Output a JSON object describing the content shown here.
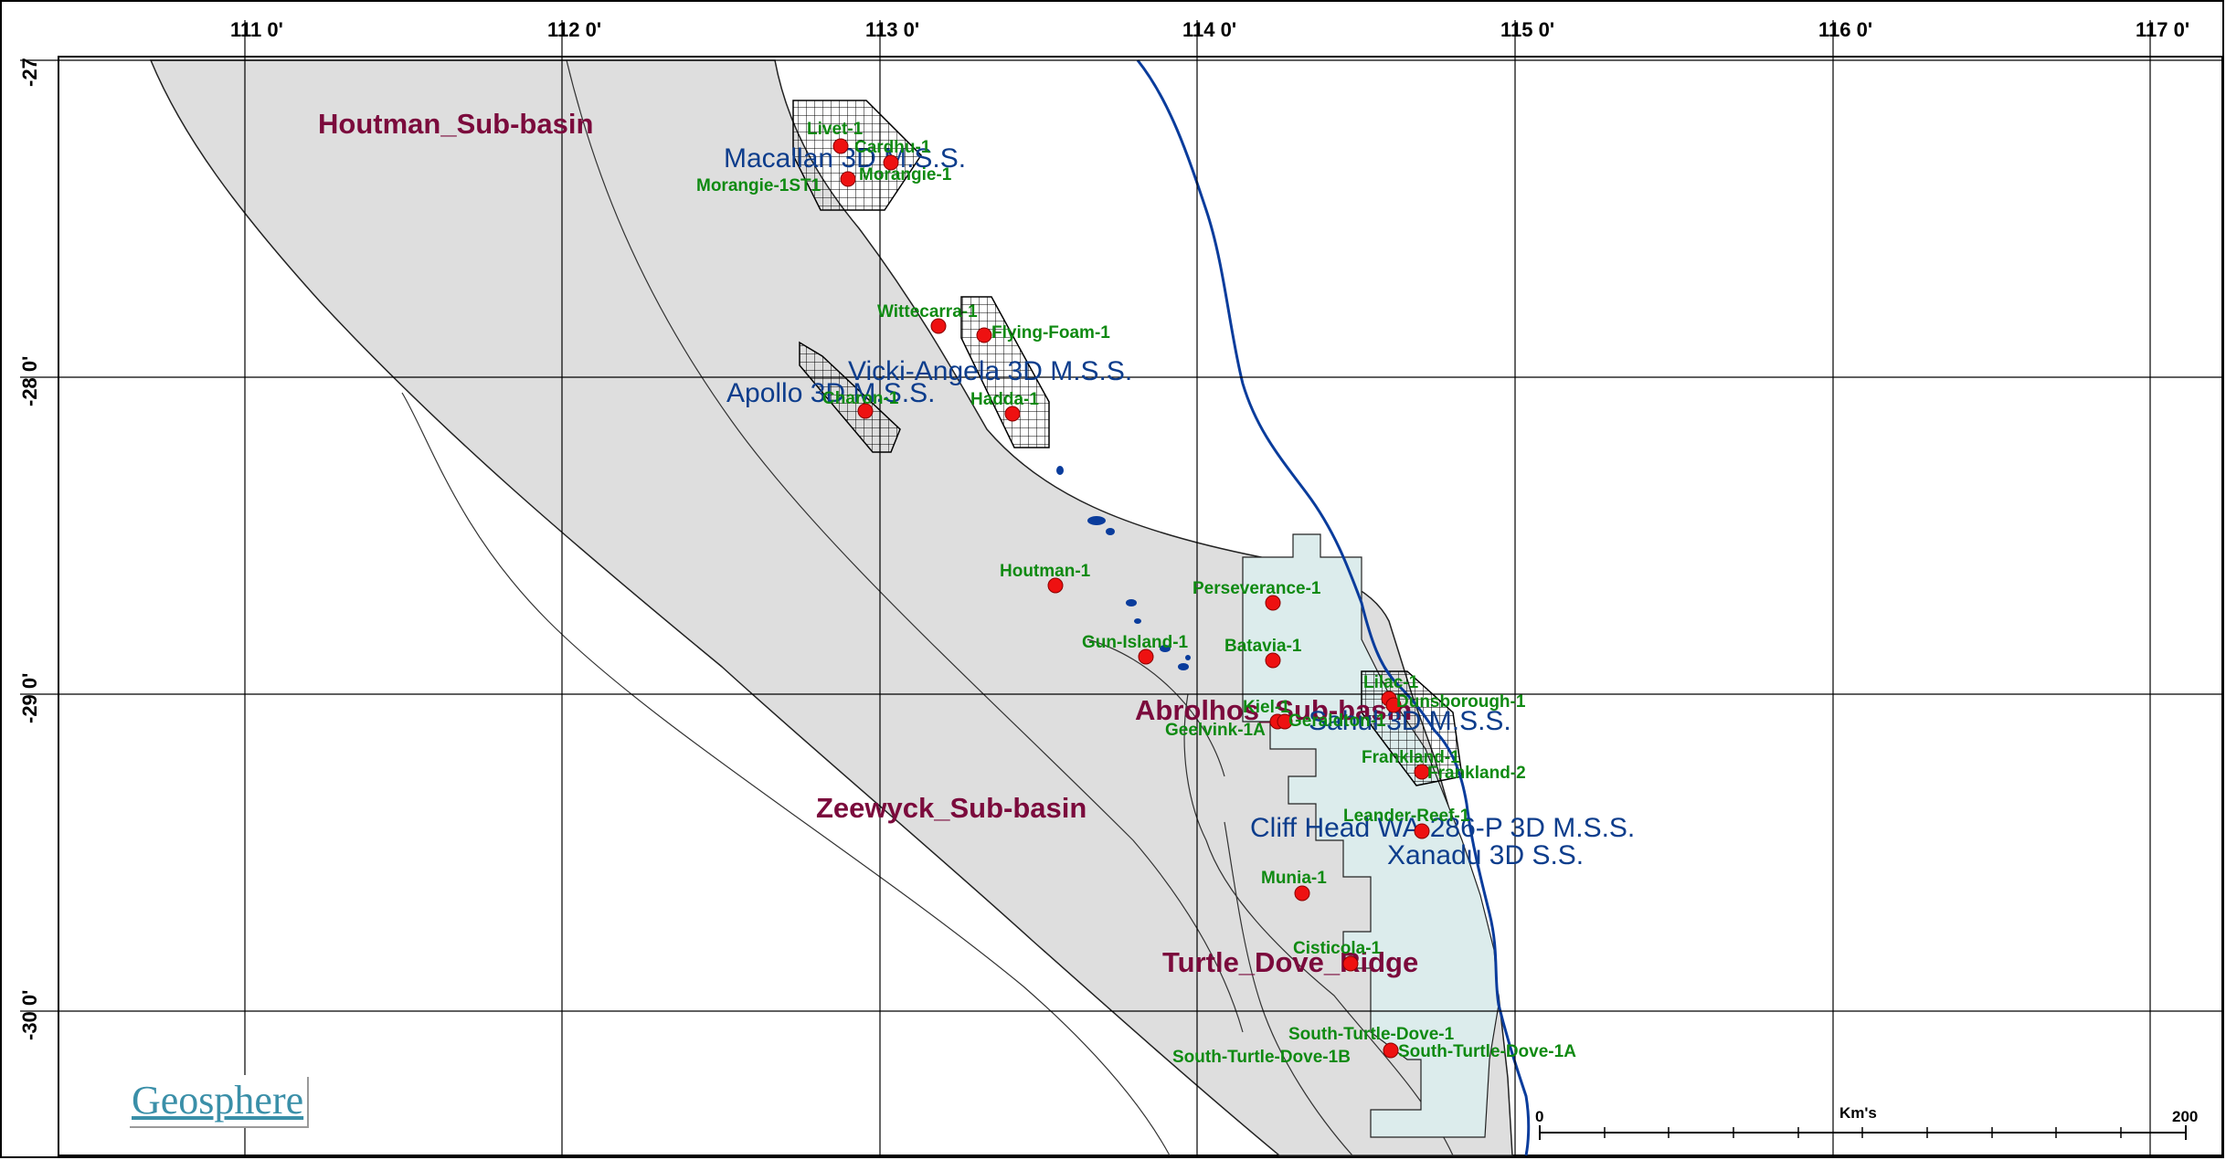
{
  "longitude_ticks": [
    "111 0'",
    "112 0'",
    "113 0'",
    "114 0'",
    "115 0'",
    "116 0'",
    "117 0'"
  ],
  "latitude_ticks": [
    "-27",
    "-28 0'",
    "-29 0'",
    "-30 0'"
  ],
  "sub_basins": [
    "Houtman_Sub-basin",
    "Zeewyck_Sub-basin",
    "Abrolhos_Sub-basin",
    "Turtle_Dove_Ridge"
  ],
  "surveys": [
    "Macallan 3D M.S.S.",
    "Vicki-Angela 3D M.S.S.",
    "Apollo 3D M.S.S.",
    "Sahul 3D M.S.S.",
    "Cliff Head WA-286-P 3D M.S.S.",
    "Xanadu 3D S.S."
  ],
  "wells": [
    "Livet-1",
    "Cardhu-1",
    "Morangie-1ST1",
    "Morangie-1",
    "Wittecarra-1",
    "Flying-Foam-1",
    "Charon-1",
    "Hadda-1",
    "Houtman-1",
    "Perseverance-1",
    "Gun-Island-1",
    "Batavia-1",
    "Lilac-1",
    "Dunsborough-1",
    "Kiel-1",
    "Geelvink-1A",
    "Geraldton-1",
    "Frankland-1",
    "Frankland-2",
    "Leander-Reef-1",
    "Munia-1",
    "Cisticola-1",
    "South-Turtle-Dove-1",
    "South-Turtle-Dove-1B",
    "South-Turtle-Dove-1A"
  ],
  "scale_bar": {
    "start": "0",
    "end": "200",
    "unit": "Km's"
  },
  "logo_text": "Geosphere",
  "colors": {
    "basin_fill": "#dedede",
    "survey_fill": "#dcecec",
    "coastline": "#0a3c9c",
    "well_marker": "#ee1111",
    "basin_label": "#7b0a3c",
    "survey_label": "#0d3d8c",
    "well_label": "#0f8a12"
  }
}
